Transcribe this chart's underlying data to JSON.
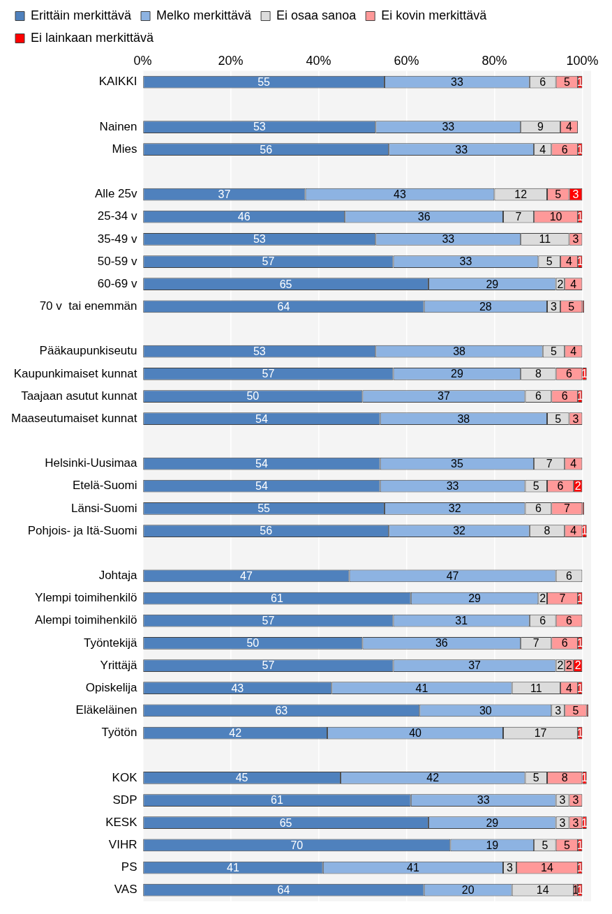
{
  "chart_data": {
    "type": "bar",
    "orientation": "horizontal",
    "stacked": true,
    "legend": "top",
    "grid": "x",
    "data_labels": true,
    "categories": [
      "KAIKKI",
      null,
      "Nainen",
      "Mies",
      null,
      "Alle 25v",
      "25-34 v",
      "35-49 v",
      "50-59 v",
      "60-69 v",
      "70 v  tai enemmän",
      null,
      "Pääkaupunkiseutu",
      "Kaupunkimaiset kunnat",
      "Taajaan asutut kunnat",
      "Maaseutumaiset kunnat",
      null,
      "Helsinki-Uusimaa",
      "Etelä-Suomi",
      "Länsi-Suomi",
      "Pohjois- ja Itä-Suomi",
      null,
      "Johtaja",
      "Ylempi toimihenkilö",
      "Alempi toimihenkilö",
      "Työntekijä",
      "Yrittäjä",
      "Opiskelija",
      "Eläkeläinen",
      "Työtön",
      null,
      "KOK",
      "SDP",
      "KESK",
      "VIHR",
      "PS",
      "VAS"
    ],
    "xlim": [
      0,
      102
    ],
    "xticks": [
      {
        "value": 0,
        "label": "0%"
      },
      {
        "value": 20,
        "label": "20%"
      },
      {
        "value": 40,
        "label": "40%"
      },
      {
        "value": 60,
        "label": "60%"
      },
      {
        "value": 80,
        "label": "80%"
      },
      {
        "value": 100,
        "label": "100%"
      }
    ],
    "series": [
      {
        "name": "Erittäin merkittävä",
        "color": "#4f81bd",
        "values": [
          55,
          null,
          53,
          56,
          null,
          37,
          46,
          53,
          57,
          65,
          64,
          null,
          53,
          57,
          50,
          54,
          null,
          54,
          54,
          55,
          56,
          null,
          47,
          61,
          57,
          50,
          57,
          43,
          63,
          42,
          null,
          45,
          61,
          65,
          70,
          41,
          64
        ]
      },
      {
        "name": "Melko merkittävä",
        "color": "#8db3e2",
        "values": [
          33,
          null,
          33,
          33,
          null,
          43,
          36,
          33,
          33,
          29,
          28,
          null,
          38,
          29,
          37,
          38,
          null,
          35,
          33,
          32,
          32,
          null,
          47,
          29,
          31,
          36,
          37,
          41,
          30,
          40,
          null,
          42,
          33,
          29,
          19,
          41,
          20
        ]
      },
      {
        "name": "Ei osaa sanoa",
        "color": "#dcdcdc",
        "values": [
          6,
          null,
          9,
          4,
          null,
          12,
          7,
          11,
          5,
          2,
          3,
          null,
          5,
          8,
          6,
          5,
          null,
          7,
          5,
          6,
          8,
          null,
          6,
          2,
          6,
          7,
          2,
          11,
          3,
          17,
          null,
          5,
          3,
          3,
          5,
          3,
          14
        ]
      },
      {
        "name": "Ei kovin merkittävä",
        "color": "#ff9999",
        "values": [
          5,
          null,
          4,
          6,
          null,
          5,
          10,
          3,
          4,
          4,
          5,
          null,
          4,
          6,
          6,
          3,
          null,
          4,
          6,
          7,
          4,
          null,
          null,
          7,
          6,
          6,
          2,
          4,
          5,
          null,
          null,
          8,
          3,
          3,
          5,
          14,
          1
        ]
      },
      {
        "name": "Ei lainkaan merkittävä",
        "color": "#ff0000",
        "values": [
          1,
          null,
          null,
          1,
          null,
          3,
          1,
          null,
          1,
          null,
          0.4,
          null,
          null,
          1,
          1,
          null,
          null,
          null,
          2,
          0.4,
          1,
          null,
          null,
          1,
          null,
          1,
          2,
          1,
          0.4,
          1,
          null,
          1,
          null,
          1,
          1,
          1,
          1
        ],
        "value_labels": [
          "1",
          null,
          null,
          "1",
          null,
          "3",
          "1",
          null,
          "1",
          null,
          null,
          null,
          null,
          "1",
          "1",
          null,
          null,
          null,
          "2",
          null,
          "1",
          null,
          null,
          "1",
          null,
          "1",
          "2",
          "1",
          null,
          "1",
          null,
          "1",
          null,
          "1",
          "1",
          "1",
          "1"
        ]
      }
    ]
  }
}
